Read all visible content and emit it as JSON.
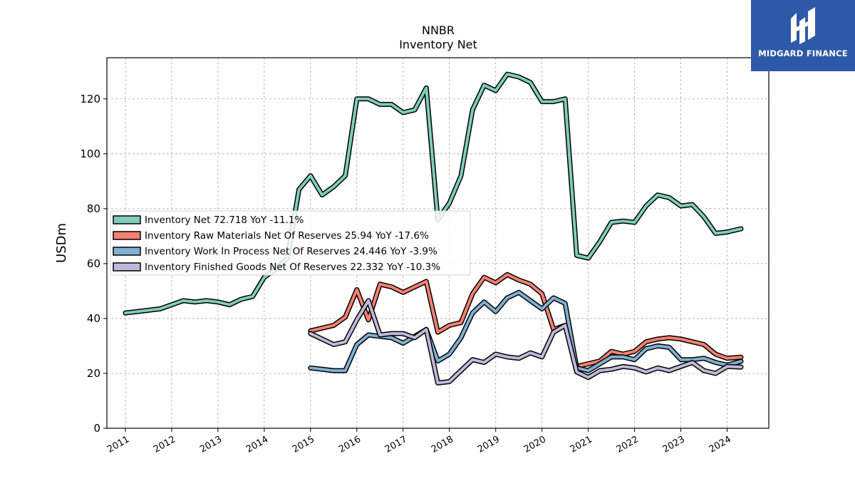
{
  "brand": {
    "name": "MIDGARD FINANCE",
    "color": "#2d5aa8"
  },
  "chart_data": {
    "type": "line",
    "title": "NNBR",
    "subtitle": "Inventory Net",
    "xlabel": "",
    "ylabel": "USDm",
    "ylim": [
      0,
      135
    ],
    "xlim": [
      2010.6,
      2024.9
    ],
    "yticks": [
      0,
      20,
      40,
      60,
      80,
      100,
      120
    ],
    "xticks": [
      2011,
      2012,
      2013,
      2014,
      2015,
      2016,
      2017,
      2018,
      2019,
      2020,
      2021,
      2022,
      2023,
      2024
    ],
    "grid": true,
    "legend_position": "center-left",
    "series": [
      {
        "name": "Inventory Net  72.718 YoY -11.1%",
        "color": "#7fcdbb",
        "x": [
          2011.0,
          2011.5,
          2011.75,
          2012.0,
          2012.25,
          2012.5,
          2012.75,
          2013.0,
          2013.25,
          2013.5,
          2013.75,
          2014.0,
          2014.25,
          2014.5,
          2014.75,
          2015.0,
          2015.25,
          2015.5,
          2015.75,
          2016.0,
          2016.25,
          2016.5,
          2016.75,
          2017.0,
          2017.25,
          2017.5,
          2017.75,
          2018.0,
          2018.25,
          2018.5,
          2018.75,
          2019.0,
          2019.25,
          2019.5,
          2019.75,
          2020.0,
          2020.25,
          2020.5,
          2020.75,
          2021.0,
          2021.25,
          2021.5,
          2021.75,
          2022.0,
          2022.25,
          2022.5,
          2022.75,
          2023.0,
          2023.25,
          2023.5,
          2023.75,
          2024.0,
          2024.3
        ],
        "values": [
          42,
          43,
          43.5,
          45,
          46.5,
          46,
          46.5,
          46,
          45,
          47,
          48,
          55,
          58,
          62,
          87,
          92,
          85,
          88,
          92,
          120,
          120,
          118,
          118,
          115,
          116,
          124,
          76,
          82,
          92,
          116,
          125,
          123,
          129,
          128,
          126,
          119,
          119,
          120,
          63,
          62,
          68,
          75,
          75.5,
          75,
          81,
          85,
          84,
          81,
          81.5,
          77,
          71,
          71.5,
          72.7
        ]
      },
      {
        "name": "Inventory Raw Materials Net Of Reserves  25.94 YoY -17.6%",
        "color": "#fb8072",
        "x": [
          2015.0,
          2015.5,
          2015.75,
          2016.0,
          2016.25,
          2016.5,
          2016.75,
          2017.0,
          2017.25,
          2017.5,
          2017.75,
          2018.0,
          2018.25,
          2018.5,
          2018.75,
          2019.0,
          2019.25,
          2019.5,
          2019.75,
          2020.0,
          2020.25,
          2020.5,
          2020.75,
          2021.0,
          2021.25,
          2021.5,
          2021.75,
          2022.0,
          2022.25,
          2022.5,
          2022.75,
          2023.0,
          2023.25,
          2023.5,
          2023.75,
          2024.0,
          2024.3
        ],
        "values": [
          35.5,
          37.5,
          40.5,
          50.5,
          39.5,
          52.5,
          51.5,
          49.5,
          51.5,
          53.5,
          35,
          37.5,
          38.5,
          49,
          55,
          53,
          56,
          54,
          52.5,
          49,
          36,
          37.5,
          22.5,
          23.5,
          24.5,
          28,
          27,
          28,
          31.5,
          32.5,
          33,
          32.5,
          31.5,
          30.5,
          27,
          25.5,
          25.9
        ]
      },
      {
        "name": "Inventory Work In Process Net Of Reserves  24.446 YoY -3.9%",
        "color": "#80b1d3",
        "x": [
          2015.0,
          2015.5,
          2015.75,
          2016.0,
          2016.25,
          2016.5,
          2016.75,
          2017.0,
          2017.25,
          2017.5,
          2017.75,
          2018.0,
          2018.25,
          2018.5,
          2018.75,
          2019.0,
          2019.25,
          2019.5,
          2019.75,
          2020.0,
          2020.25,
          2020.5,
          2020.75,
          2021.0,
          2021.25,
          2021.5,
          2021.75,
          2022.0,
          2022.25,
          2022.5,
          2022.75,
          2023.0,
          2023.25,
          2023.5,
          2023.75,
          2024.0,
          2024.3
        ],
        "values": [
          22,
          21,
          21,
          30.5,
          34,
          33.5,
          33,
          31,
          33.5,
          36,
          24.5,
          27,
          33,
          42,
          46,
          42.5,
          47.5,
          49.5,
          46.5,
          43.5,
          47.5,
          45.5,
          22,
          21,
          23.5,
          26,
          26,
          25,
          29,
          30,
          29.5,
          25,
          25,
          25.5,
          24,
          23,
          24.4
        ]
      },
      {
        "name": "Inventory Finished Goods Net Of Reserves  22.332 YoY -10.3%",
        "color": "#bebada",
        "x": [
          2015.0,
          2015.5,
          2015.75,
          2016.0,
          2016.25,
          2016.5,
          2016.75,
          2017.0,
          2017.25,
          2017.5,
          2017.75,
          2018.0,
          2018.25,
          2018.5,
          2018.75,
          2019.0,
          2019.25,
          2019.5,
          2019.75,
          2020.0,
          2020.25,
          2020.5,
          2020.75,
          2021.0,
          2021.25,
          2021.5,
          2021.75,
          2022.0,
          2022.25,
          2022.5,
          2022.75,
          2023.0,
          2023.25,
          2023.5,
          2023.75,
          2024.0,
          2024.3
        ],
        "values": [
          34.5,
          30.5,
          31.5,
          39.5,
          46.5,
          34,
          34.5,
          34.5,
          33,
          36,
          16.5,
          17,
          21,
          25,
          24,
          27,
          26,
          25.5,
          27.5,
          26,
          35,
          37.5,
          20.5,
          18.5,
          21,
          21.5,
          22.5,
          22,
          20.5,
          22,
          21,
          22.5,
          24,
          21,
          20,
          22.5,
          22.3
        ]
      }
    ]
  }
}
